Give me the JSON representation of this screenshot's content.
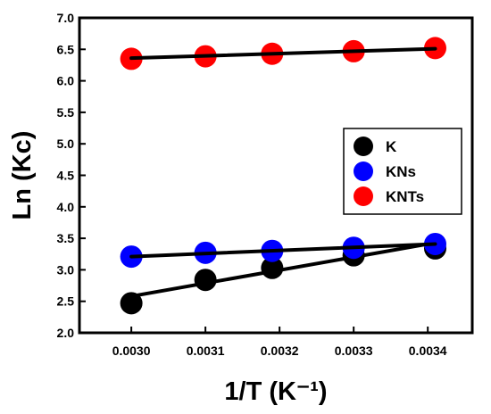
{
  "chart_data": {
    "type": "scatter",
    "xlabel": "1/T (K⁻¹)",
    "ylabel": "Ln (Kc)",
    "xlim": [
      0.00293,
      0.00346
    ],
    "ylim": [
      2.0,
      7.0
    ],
    "xticks": [
      "0.0030",
      "0.0031",
      "0.0032",
      "0.0033",
      "0.0034"
    ],
    "xtick_values": [
      0.003,
      0.0031,
      0.0032,
      0.0033,
      0.0034
    ],
    "yticks": [
      "2.0",
      "2.5",
      "3.0",
      "3.5",
      "4.0",
      "4.5",
      "5.0",
      "5.5",
      "6.0",
      "6.5",
      "7.0"
    ],
    "ytick_values": [
      2.0,
      2.5,
      3.0,
      3.5,
      4.0,
      4.5,
      5.0,
      5.5,
      6.0,
      6.5,
      7.0
    ],
    "x": [
      0.003,
      0.0031,
      0.00319,
      0.0033,
      0.00341
    ],
    "legend_position": "right",
    "grid": false,
    "series": [
      {
        "name": "K",
        "color": "#000000",
        "values": [
          2.47,
          2.84,
          3.03,
          3.23,
          3.34
        ],
        "fit": [
          [
            0.003,
            2.58
          ],
          [
            0.00341,
            3.43
          ]
        ]
      },
      {
        "name": "KNs",
        "color": "#0000ff",
        "values": [
          3.21,
          3.27,
          3.3,
          3.35,
          3.41
        ],
        "fit": [
          [
            0.003,
            3.21
          ],
          [
            0.00341,
            3.41
          ]
        ]
      },
      {
        "name": "KNTs",
        "color": "#ff0000",
        "values": [
          6.35,
          6.39,
          6.43,
          6.47,
          6.52
        ],
        "fit": [
          [
            0.003,
            6.36
          ],
          [
            0.00341,
            6.51
          ]
        ]
      }
    ]
  }
}
